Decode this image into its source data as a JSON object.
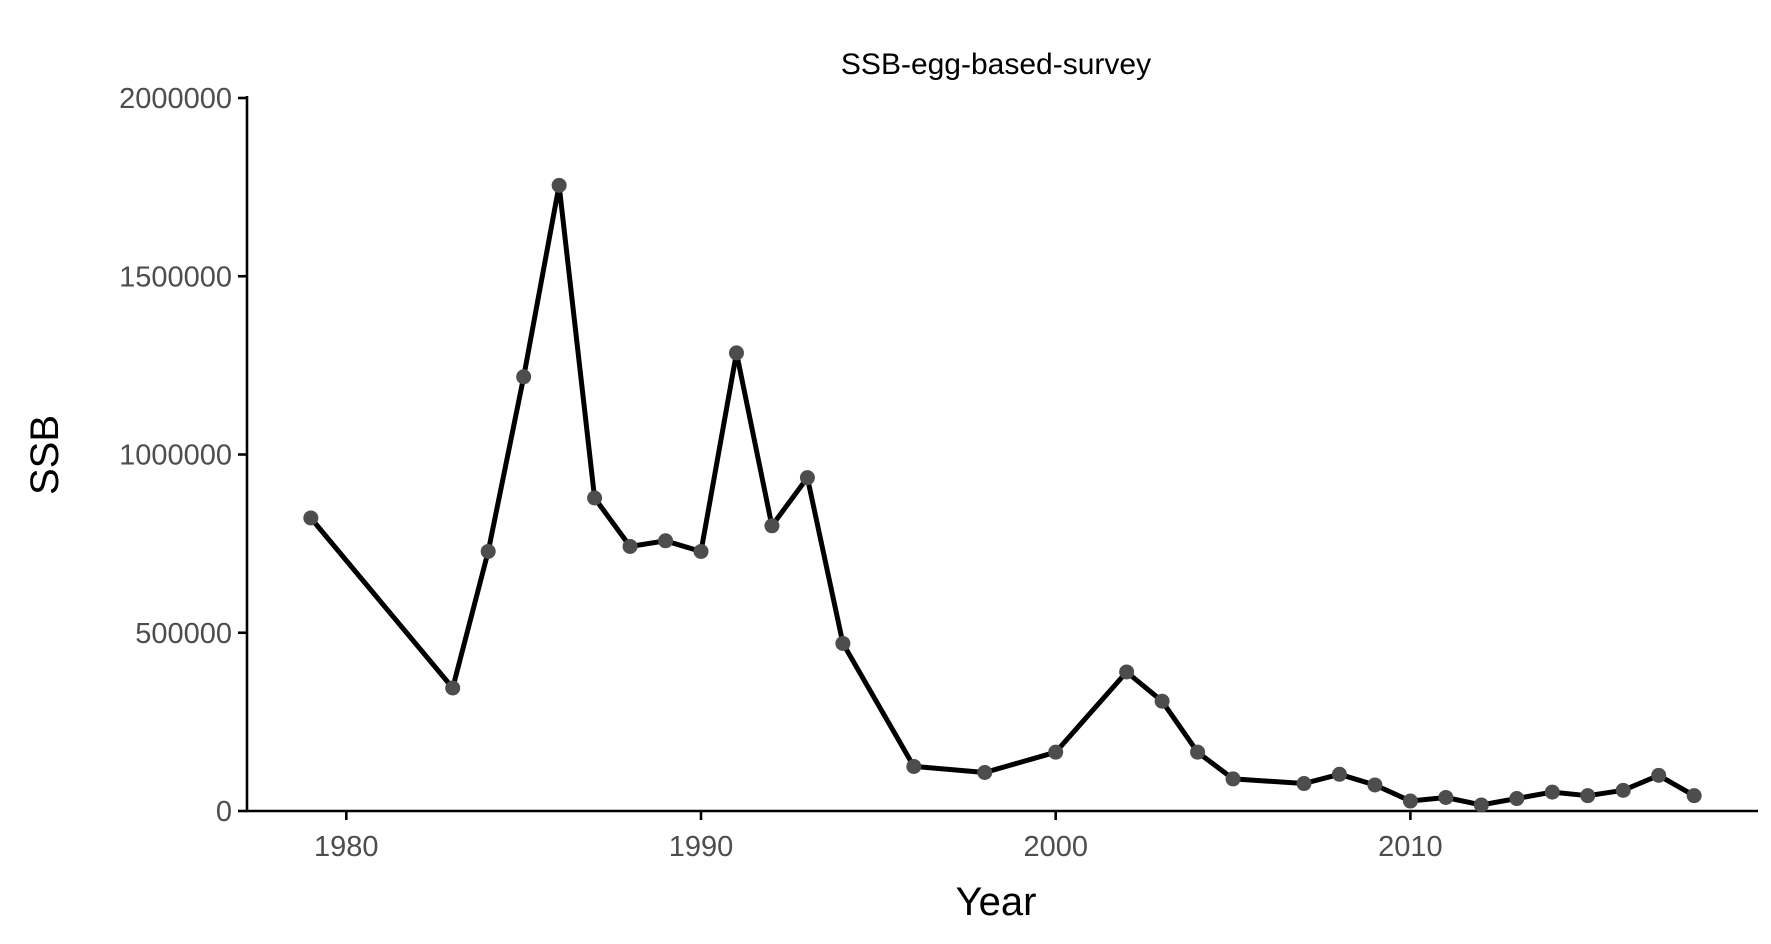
{
  "chart_data": {
    "type": "line",
    "title": "SSB-egg-based-survey",
    "xlabel": "Year",
    "ylabel": "SSB",
    "xlim": [
      1977.2,
      2019.8
    ],
    "ylim": [
      0,
      2000000
    ],
    "x_ticks": [
      1980,
      1990,
      2000,
      2010
    ],
    "x_tick_labels": [
      "1980",
      "1990",
      "2000",
      "2010"
    ],
    "y_ticks": [
      0,
      500000,
      1000000,
      1500000,
      2000000
    ],
    "y_tick_labels": [
      "0",
      "500000",
      "1000000",
      "1500000",
      "2000000"
    ],
    "grid": false,
    "legend": "none",
    "colors": {
      "line": "#000000",
      "points": "#4d4d4d",
      "axis": "#000000",
      "tick_text": "#4d4d4d"
    },
    "series": [
      {
        "x": [
          1979,
          1983,
          1984,
          1985,
          1986,
          1987,
          1988,
          1989,
          1990,
          1991,
          1992,
          1993,
          1994,
          1996,
          1998,
          2000,
          2002,
          2003,
          2004,
          2005,
          2007,
          2008,
          2009,
          2010,
          2011,
          2012,
          2013,
          2014,
          2015,
          2016,
          2017,
          2018
        ],
        "y": [
          822000,
          345000,
          728000,
          1218000,
          1755000,
          878000,
          742000,
          758000,
          728000,
          1285000,
          800000,
          935000,
          470000,
          125000,
          108000,
          165000,
          390000,
          308000,
          165000,
          90000,
          77000,
          103000,
          73000,
          28000,
          38000,
          17000,
          35000,
          53000,
          43000,
          58000,
          100000,
          43000
        ]
      }
    ]
  }
}
